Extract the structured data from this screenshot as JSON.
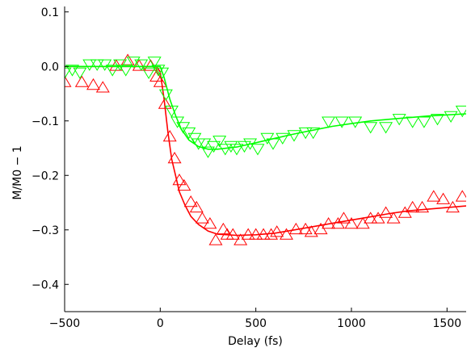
{
  "chart_data": {
    "type": "scatter",
    "title": "",
    "xlabel": "Delay (fs)",
    "ylabel": "M/M0 − 1",
    "xlim": [
      -500,
      1600
    ],
    "ylim": [
      -0.45,
      0.11
    ],
    "grid": false,
    "legend": "none",
    "x_ticks": [
      -500,
      0,
      500,
      1000,
      1500
    ],
    "x_tick_labels": [
      "−500",
      "0",
      "500",
      "1000",
      "1500"
    ],
    "y_ticks": [
      0.1,
      0.0,
      -0.1,
      -0.2,
      -0.3,
      -0.4
    ],
    "y_tick_labels": [
      "0.1",
      "0.0",
      "−0.1",
      "−0.2",
      "−0.3",
      "−0.4"
    ],
    "series": [
      {
        "marker": "triangle-up",
        "color": "#ff0000",
        "points": [
          [
            -500,
            -0.03
          ],
          [
            -410,
            -0.03
          ],
          [
            -350,
            -0.035
          ],
          [
            -300,
            -0.04
          ],
          [
            -230,
            0.0
          ],
          [
            -170,
            0.01
          ],
          [
            -110,
            0.0
          ],
          [
            -50,
            0.0
          ],
          [
            -20,
            -0.02
          ],
          [
            0,
            -0.03
          ],
          [
            25,
            -0.07
          ],
          [
            50,
            -0.13
          ],
          [
            75,
            -0.17
          ],
          [
            100,
            -0.21
          ],
          [
            125,
            -0.22
          ],
          [
            160,
            -0.25
          ],
          [
            190,
            -0.26
          ],
          [
            220,
            -0.28
          ],
          [
            260,
            -0.29
          ],
          [
            290,
            -0.32
          ],
          [
            330,
            -0.3
          ],
          [
            350,
            -0.31
          ],
          [
            380,
            -0.31
          ],
          [
            420,
            -0.32
          ],
          [
            460,
            -0.31
          ],
          [
            500,
            -0.31
          ],
          [
            540,
            -0.31
          ],
          [
            580,
            -0.31
          ],
          [
            610,
            -0.305
          ],
          [
            660,
            -0.31
          ],
          [
            710,
            -0.3
          ],
          [
            760,
            -0.3
          ],
          [
            790,
            -0.305
          ],
          [
            840,
            -0.3
          ],
          [
            880,
            -0.29
          ],
          [
            930,
            -0.29
          ],
          [
            960,
            -0.28
          ],
          [
            1000,
            -0.29
          ],
          [
            1060,
            -0.29
          ],
          [
            1100,
            -0.28
          ],
          [
            1140,
            -0.28
          ],
          [
            1180,
            -0.27
          ],
          [
            1220,
            -0.28
          ],
          [
            1280,
            -0.27
          ],
          [
            1320,
            -0.26
          ],
          [
            1370,
            -0.26
          ],
          [
            1430,
            -0.24
          ],
          [
            1480,
            -0.245
          ],
          [
            1530,
            -0.26
          ],
          [
            1580,
            -0.24
          ]
        ],
        "fit": [
          [
            -500,
            0.0
          ],
          [
            -100,
            0.0
          ],
          [
            -20,
            0.0
          ],
          [
            0,
            -0.01
          ],
          [
            20,
            -0.06
          ],
          [
            40,
            -0.12
          ],
          [
            60,
            -0.17
          ],
          [
            80,
            -0.2
          ],
          [
            100,
            -0.23
          ],
          [
            130,
            -0.255
          ],
          [
            160,
            -0.275
          ],
          [
            200,
            -0.29
          ],
          [
            250,
            -0.302
          ],
          [
            300,
            -0.308
          ],
          [
            400,
            -0.31
          ],
          [
            500,
            -0.309
          ],
          [
            600,
            -0.306
          ],
          [
            700,
            -0.3
          ],
          [
            800,
            -0.294
          ],
          [
            900,
            -0.288
          ],
          [
            1000,
            -0.282
          ],
          [
            1100,
            -0.276
          ],
          [
            1200,
            -0.27
          ],
          [
            1300,
            -0.265
          ],
          [
            1400,
            -0.262
          ],
          [
            1500,
            -0.259
          ],
          [
            1600,
            -0.256
          ]
        ]
      },
      {
        "marker": "triangle-down",
        "color": "#00ff00",
        "points": [
          [
            -500,
            -0.01
          ],
          [
            -460,
            -0.005
          ],
          [
            -420,
            -0.01
          ],
          [
            -370,
            0.005
          ],
          [
            -330,
            0.005
          ],
          [
            -290,
            0.005
          ],
          [
            -250,
            -0.005
          ],
          [
            -210,
            0.005
          ],
          [
            -180,
            -0.005
          ],
          [
            -140,
            0.01
          ],
          [
            -100,
            0.005
          ],
          [
            -60,
            -0.01
          ],
          [
            -30,
            0.01
          ],
          [
            -10,
            -0.005
          ],
          [
            10,
            -0.01
          ],
          [
            30,
            -0.05
          ],
          [
            60,
            -0.08
          ],
          [
            90,
            -0.1
          ],
          [
            120,
            -0.11
          ],
          [
            150,
            -0.12
          ],
          [
            180,
            -0.13
          ],
          [
            200,
            -0.14
          ],
          [
            230,
            -0.14
          ],
          [
            250,
            -0.155
          ],
          [
            280,
            -0.145
          ],
          [
            310,
            -0.135
          ],
          [
            340,
            -0.15
          ],
          [
            370,
            -0.145
          ],
          [
            400,
            -0.15
          ],
          [
            440,
            -0.145
          ],
          [
            470,
            -0.14
          ],
          [
            510,
            -0.15
          ],
          [
            560,
            -0.13
          ],
          [
            590,
            -0.14
          ],
          [
            640,
            -0.13
          ],
          [
            700,
            -0.125
          ],
          [
            760,
            -0.12
          ],
          [
            800,
            -0.12
          ],
          [
            880,
            -0.1
          ],
          [
            950,
            -0.1
          ],
          [
            1020,
            -0.1
          ],
          [
            1100,
            -0.11
          ],
          [
            1180,
            -0.11
          ],
          [
            1250,
            -0.095
          ],
          [
            1320,
            -0.1
          ],
          [
            1380,
            -0.1
          ],
          [
            1450,
            -0.095
          ],
          [
            1520,
            -0.09
          ],
          [
            1580,
            -0.08
          ]
        ],
        "fit": [
          [
            -500,
            0.0
          ],
          [
            -100,
            0.0
          ],
          [
            0,
            0.0
          ],
          [
            20,
            -0.02
          ],
          [
            50,
            -0.06
          ],
          [
            80,
            -0.09
          ],
          [
            110,
            -0.115
          ],
          [
            150,
            -0.135
          ],
          [
            200,
            -0.147
          ],
          [
            250,
            -0.152
          ],
          [
            300,
            -0.152
          ],
          [
            400,
            -0.148
          ],
          [
            500,
            -0.14
          ],
          [
            600,
            -0.132
          ],
          [
            700,
            -0.124
          ],
          [
            800,
            -0.117
          ],
          [
            900,
            -0.11
          ],
          [
            1000,
            -0.105
          ],
          [
            1100,
            -0.1
          ],
          [
            1200,
            -0.097
          ],
          [
            1300,
            -0.094
          ],
          [
            1400,
            -0.091
          ],
          [
            1500,
            -0.089
          ],
          [
            1600,
            -0.087
          ]
        ]
      }
    ]
  }
}
